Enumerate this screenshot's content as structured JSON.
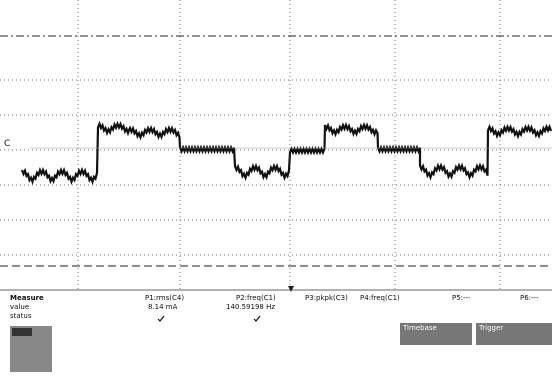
{
  "measure": {
    "header": "Measure",
    "rows": [
      "value",
      "status"
    ],
    "params": [
      {
        "label": "P1:rms(C4)",
        "value": "8.14 mA"
      },
      {
        "label": "P2:freq(C1)",
        "value": "140.59198 Hz"
      },
      {
        "label": "P3:pkpk(C3)"
      },
      {
        "label": "P4:freq(C1)"
      },
      {
        "label": "P5:---"
      },
      {
        "label": "P6:---"
      }
    ]
  },
  "panels": {
    "timebase": "Timebase",
    "trigger": "Trigger"
  }
}
